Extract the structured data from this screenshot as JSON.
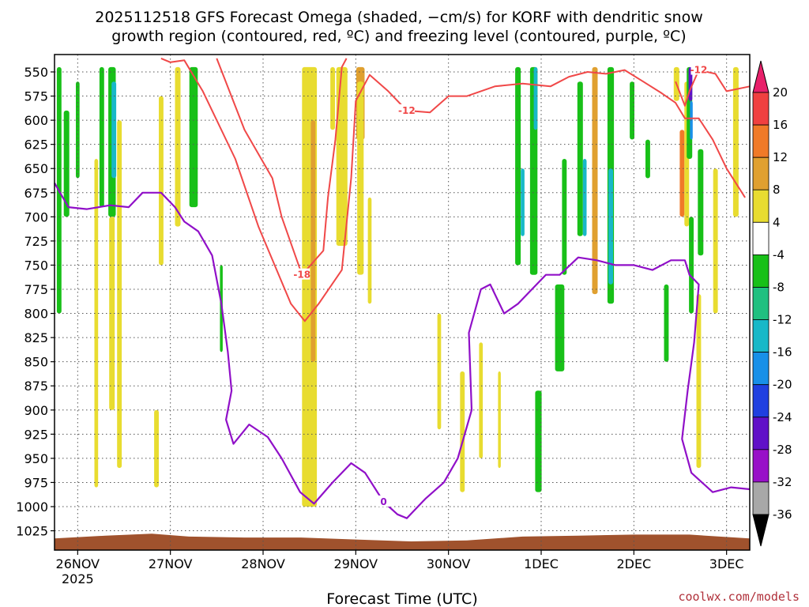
{
  "chart_data": {
    "type": "heatmap",
    "title_line1": "2025112518 GFS Forecast Omega (shaded, −cm/s) for KORF with dendritic snow",
    "title_line2": "growth region (contoured, red, ºC) and freezing level (contoured, purple, ºC)",
    "xlabel": "Forecast Time (UTC)",
    "credit": "coolwx.com/models",
    "x_ticks": [
      {
        "label": "26NOV",
        "sublabel": "2025",
        "day": 0
      },
      {
        "label": "27NOV",
        "day": 1
      },
      {
        "label": "28NOV",
        "day": 2
      },
      {
        "label": "29NOV",
        "day": 3
      },
      {
        "label": "30NOV",
        "day": 4
      },
      {
        "label": "1DEC",
        "day": 5
      },
      {
        "label": "2DEC",
        "day": 6
      },
      {
        "label": "3DEC",
        "day": 7
      }
    ],
    "x_range_days": [
      -0.25,
      7.25
    ],
    "y_ticks": [
      "550",
      "575",
      "600",
      "625",
      "650",
      "675",
      "700",
      "725",
      "750",
      "775",
      "800",
      "825",
      "850",
      "875",
      "900",
      "925",
      "950",
      "975",
      "1000",
      "1025"
    ],
    "y_range_hpa": [
      532,
      1045
    ],
    "colorbar": {
      "labels": [
        "20",
        "16",
        "12",
        "8",
        "4",
        "-4",
        "-8",
        "-12",
        "-16",
        "-20",
        "-24",
        "-28",
        "-32",
        "-36"
      ],
      "colors": [
        "#e8206a",
        "#f04040",
        "#f07a28",
        "#e0a030",
        "#e8dc30",
        "#ffffff",
        "#18c018",
        "#20c080",
        "#18b8c8",
        "#1890e8",
        "#2040e0",
        "#6010c8",
        "#9810c8",
        "#a8a8a8",
        "#000000"
      ]
    },
    "omega_cells": [
      {
        "d": -0.2,
        "w": 0.05,
        "p0": 545,
        "p1": 800,
        "v": -6
      },
      {
        "d": -0.12,
        "w": 0.06,
        "p0": 590,
        "p1": 700,
        "v": -6
      },
      {
        "d": 0.0,
        "w": 0.04,
        "p0": 560,
        "p1": 660,
        "v": -6
      },
      {
        "d": 0.2,
        "w": 0.04,
        "p0": 640,
        "p1": 980,
        "v": 5
      },
      {
        "d": 0.26,
        "w": 0.05,
        "p0": 545,
        "p1": 690,
        "v": -6
      },
      {
        "d": 0.37,
        "w": 0.08,
        "p0": 545,
        "p1": 700,
        "v": -6
      },
      {
        "d": 0.39,
        "w": 0.05,
        "p0": 560,
        "p1": 660,
        "v": -12
      },
      {
        "d": 0.37,
        "w": 0.06,
        "p0": 700,
        "p1": 900,
        "v": 5
      },
      {
        "d": 0.45,
        "w": 0.05,
        "p0": 600,
        "p1": 960,
        "v": 5
      },
      {
        "d": 0.85,
        "w": 0.05,
        "p0": 900,
        "p1": 980,
        "v": 5
      },
      {
        "d": 0.9,
        "w": 0.05,
        "p0": 575,
        "p1": 750,
        "v": 5
      },
      {
        "d": 1.08,
        "w": 0.06,
        "p0": 545,
        "p1": 710,
        "v": 5
      },
      {
        "d": 1.25,
        "w": 0.09,
        "p0": 545,
        "p1": 690,
        "v": -6
      },
      {
        "d": 1.55,
        "w": 0.03,
        "p0": 750,
        "p1": 840,
        "v": -6
      },
      {
        "d": 2.5,
        "w": 0.16,
        "p0": 545,
        "p1": 1000,
        "v": 5
      },
      {
        "d": 2.54,
        "w": 0.05,
        "p0": 600,
        "p1": 850,
        "v": 9
      },
      {
        "d": 2.75,
        "w": 0.05,
        "p0": 545,
        "p1": 610,
        "v": 5
      },
      {
        "d": 2.85,
        "w": 0.12,
        "p0": 545,
        "p1": 730,
        "v": 5
      },
      {
        "d": 3.05,
        "w": 0.09,
        "p0": 545,
        "p1": 620,
        "v": 9
      },
      {
        "d": 3.05,
        "w": 0.07,
        "p0": 560,
        "p1": 760,
        "v": 5
      },
      {
        "d": 3.15,
        "w": 0.04,
        "p0": 680,
        "p1": 790,
        "v": 5
      },
      {
        "d": 3.9,
        "w": 0.04,
        "p0": 800,
        "p1": 920,
        "v": 5
      },
      {
        "d": 4.15,
        "w": 0.05,
        "p0": 860,
        "p1": 985,
        "v": 5
      },
      {
        "d": 4.35,
        "w": 0.04,
        "p0": 830,
        "p1": 950,
        "v": 5
      },
      {
        "d": 4.55,
        "w": 0.03,
        "p0": 860,
        "p1": 960,
        "v": 5
      },
      {
        "d": 4.75,
        "w": 0.06,
        "p0": 545,
        "p1": 750,
        "v": -6
      },
      {
        "d": 4.8,
        "w": 0.04,
        "p0": 650,
        "p1": 720,
        "v": -12
      },
      {
        "d": 4.92,
        "w": 0.08,
        "p0": 545,
        "p1": 760,
        "v": -6
      },
      {
        "d": 4.94,
        "w": 0.04,
        "p0": 545,
        "p1": 610,
        "v": -12
      },
      {
        "d": 4.97,
        "w": 0.07,
        "p0": 880,
        "p1": 985,
        "v": -6
      },
      {
        "d": 5.2,
        "w": 0.1,
        "p0": 770,
        "p1": 860,
        "v": -6
      },
      {
        "d": 5.25,
        "w": 0.05,
        "p0": 640,
        "p1": 760,
        "v": -6
      },
      {
        "d": 5.42,
        "w": 0.06,
        "p0": 560,
        "p1": 720,
        "v": -6
      },
      {
        "d": 5.47,
        "w": 0.04,
        "p0": 640,
        "p1": 720,
        "v": -12
      },
      {
        "d": 5.58,
        "w": 0.06,
        "p0": 545,
        "p1": 780,
        "v": 9
      },
      {
        "d": 5.75,
        "w": 0.07,
        "p0": 545,
        "p1": 790,
        "v": -6
      },
      {
        "d": 5.75,
        "w": 0.05,
        "p0": 650,
        "p1": 770,
        "v": -12
      },
      {
        "d": 5.98,
        "w": 0.05,
        "p0": 560,
        "p1": 620,
        "v": -6
      },
      {
        "d": 6.15,
        "w": 0.05,
        "p0": 620,
        "p1": 660,
        "v": -6
      },
      {
        "d": 6.35,
        "w": 0.05,
        "p0": 770,
        "p1": 850,
        "v": -6
      },
      {
        "d": 6.46,
        "w": 0.06,
        "p0": 545,
        "p1": 580,
        "v": 5
      },
      {
        "d": 6.52,
        "w": 0.05,
        "p0": 610,
        "p1": 700,
        "v": 13
      },
      {
        "d": 6.57,
        "w": 0.05,
        "p0": 560,
        "p1": 710,
        "v": 5
      },
      {
        "d": 6.6,
        "w": 0.06,
        "p0": 545,
        "p1": 640,
        "v": -6
      },
      {
        "d": 6.61,
        "w": 0.04,
        "p0": 545,
        "p1": 580,
        "v": -26
      },
      {
        "d": 6.62,
        "w": 0.03,
        "p0": 580,
        "p1": 620,
        "v": -18
      },
      {
        "d": 6.62,
        "w": 0.05,
        "p0": 700,
        "p1": 800,
        "v": -6
      },
      {
        "d": 6.72,
        "w": 0.06,
        "p0": 630,
        "p1": 740,
        "v": -6
      },
      {
        "d": 6.7,
        "w": 0.05,
        "p0": 780,
        "p1": 960,
        "v": 5
      },
      {
        "d": 6.88,
        "w": 0.05,
        "p0": 650,
        "p1": 800,
        "v": 5
      },
      {
        "d": 7.1,
        "w": 0.06,
        "p0": 545,
        "p1": 700,
        "v": 5
      }
    ],
    "dgz_contours": [
      {
        "label": "-12",
        "pts": [
          [
            0.9,
            536
          ],
          [
            1.0,
            540
          ],
          [
            1.15,
            538
          ],
          [
            1.35,
            570
          ],
          [
            1.7,
            640
          ],
          [
            1.95,
            710
          ],
          [
            2.3,
            790
          ],
          [
            2.45,
            808
          ],
          [
            2.6,
            790
          ],
          [
            2.85,
            755
          ],
          [
            2.95,
            660
          ],
          [
            3.0,
            580
          ],
          [
            3.15,
            553
          ],
          [
            3.35,
            570
          ],
          [
            3.55,
            590
          ],
          [
            3.8,
            592
          ],
          [
            4.0,
            575
          ],
          [
            4.2,
            575
          ],
          [
            4.5,
            565
          ],
          [
            4.8,
            562
          ],
          [
            5.1,
            565
          ],
          [
            5.3,
            555
          ],
          [
            5.5,
            550
          ],
          [
            5.7,
            552
          ],
          [
            5.9,
            548
          ],
          [
            6.1,
            560
          ],
          [
            6.3,
            572
          ],
          [
            6.45,
            582
          ],
          [
            6.55,
            598
          ],
          [
            6.7,
            598
          ],
          [
            6.85,
            620
          ],
          [
            7.0,
            650
          ],
          [
            7.2,
            680
          ]
        ]
      },
      {
        "label": "-18",
        "pts": [
          [
            1.5,
            536
          ],
          [
            1.8,
            610
          ],
          [
            2.1,
            660
          ],
          [
            2.2,
            700
          ],
          [
            2.42,
            760
          ],
          [
            2.65,
            735
          ],
          [
            2.7,
            680
          ],
          [
            2.78,
            620
          ],
          [
            2.85,
            545
          ],
          [
            2.9,
            536
          ]
        ]
      },
      {
        "label": "-12",
        "pts": [
          [
            6.45,
            560
          ],
          [
            6.55,
            585
          ],
          [
            6.6,
            570
          ],
          [
            6.7,
            548
          ],
          [
            6.88,
            552
          ],
          [
            7.0,
            570
          ],
          [
            7.25,
            565
          ]
        ]
      }
    ],
    "freezing_contour": {
      "label": "0",
      "pts": [
        [
          -0.25,
          665
        ],
        [
          -0.1,
          690
        ],
        [
          0.1,
          692
        ],
        [
          0.35,
          688
        ],
        [
          0.55,
          690
        ],
        [
          0.7,
          675
        ],
        [
          0.9,
          675
        ],
        [
          1.05,
          690
        ],
        [
          1.15,
          705
        ],
        [
          1.3,
          715
        ],
        [
          1.45,
          740
        ],
        [
          1.55,
          790
        ],
        [
          1.62,
          840
        ],
        [
          1.66,
          880
        ],
        [
          1.6,
          910
        ],
        [
          1.68,
          935
        ],
        [
          1.85,
          915
        ],
        [
          2.05,
          928
        ],
        [
          2.2,
          950
        ],
        [
          2.4,
          985
        ],
        [
          2.55,
          997
        ],
        [
          2.75,
          975
        ],
        [
          2.95,
          955
        ],
        [
          3.1,
          965
        ],
        [
          3.3,
          995
        ],
        [
          3.45,
          1008
        ],
        [
          3.55,
          1012
        ],
        [
          3.75,
          992
        ],
        [
          3.95,
          975
        ],
        [
          4.1,
          950
        ],
        [
          4.25,
          900
        ],
        [
          4.22,
          820
        ],
        [
          4.35,
          775
        ],
        [
          4.45,
          770
        ],
        [
          4.6,
          800
        ],
        [
          4.75,
          790
        ],
        [
          4.9,
          775
        ],
        [
          5.05,
          760
        ],
        [
          5.2,
          760
        ],
        [
          5.4,
          742
        ],
        [
          5.6,
          745
        ],
        [
          5.8,
          750
        ],
        [
          6.0,
          750
        ],
        [
          6.2,
          755
        ],
        [
          6.4,
          745
        ],
        [
          6.55,
          745
        ],
        [
          6.6,
          760
        ],
        [
          6.7,
          770
        ],
        [
          6.65,
          830
        ],
        [
          6.58,
          880
        ],
        [
          6.52,
          930
        ],
        [
          6.62,
          965
        ],
        [
          6.85,
          985
        ],
        [
          7.05,
          980
        ],
        [
          7.25,
          982
        ]
      ]
    },
    "surface": [
      [
        -0.25,
        1033
      ],
      [
        0.3,
        1030
      ],
      [
        0.8,
        1028
      ],
      [
        1.2,
        1031
      ],
      [
        1.8,
        1032
      ],
      [
        2.4,
        1032
      ],
      [
        3.0,
        1034
      ],
      [
        3.6,
        1036
      ],
      [
        4.2,
        1035
      ],
      [
        4.8,
        1031
      ],
      [
        5.4,
        1030
      ],
      [
        6.0,
        1029
      ],
      [
        6.6,
        1029
      ],
      [
        7.25,
        1033
      ]
    ]
  }
}
